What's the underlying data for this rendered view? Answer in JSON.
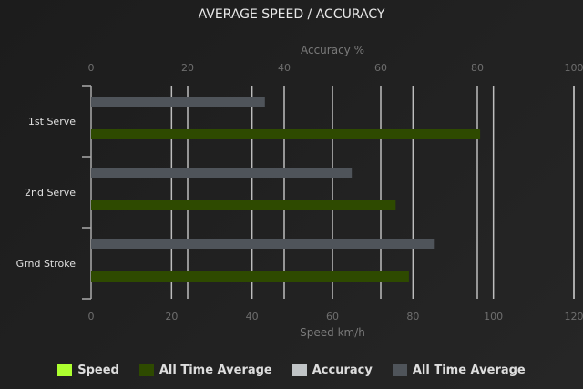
{
  "chart_data": {
    "type": "bar",
    "orientation": "horizontal",
    "title": "AVERAGE SPEED / ACCURACY",
    "categories": [
      "1st Serve",
      "2nd Serve",
      "Grnd Stroke"
    ],
    "top_axis": {
      "label": "Accuracy %",
      "range": [
        0,
        100
      ],
      "ticks": [
        0,
        20,
        40,
        60,
        80,
        100
      ]
    },
    "bottom_axis": {
      "label": "Speed km/h",
      "range": [
        0,
        120
      ],
      "ticks": [
        0,
        20,
        40,
        60,
        80,
        100,
        120
      ]
    },
    "grid": true,
    "legend_position": "bottom",
    "series": [
      {
        "name": "Speed",
        "axis": "bottom",
        "color": "#adff2f",
        "values": [
          null,
          null,
          null
        ]
      },
      {
        "name": "All Time Average",
        "axis": "bottom",
        "color": "#2e4a00",
        "values": [
          96.7,
          75.7,
          79
        ]
      },
      {
        "name": "Accuracy",
        "axis": "top",
        "color": "#c0c4c6",
        "values": [
          null,
          null,
          null
        ]
      },
      {
        "name": "All Time Average",
        "axis": "top",
        "color": "#4f545a",
        "values": [
          36,
          54,
          71
        ]
      }
    ]
  }
}
